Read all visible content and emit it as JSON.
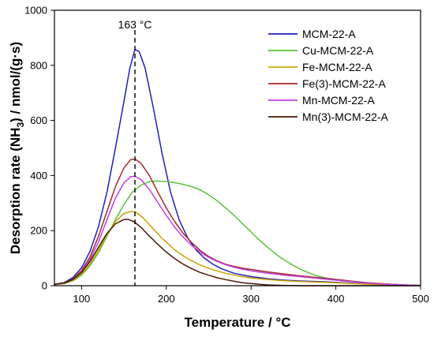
{
  "chart_data": {
    "type": "line",
    "xlabel": "Temperature / °C",
    "ylabel_parts": [
      "Desorption rate (NH",
      "3",
      ") / nmol/(g·s)"
    ],
    "xlim": [
      68,
      500
    ],
    "ylim": [
      0,
      1000
    ],
    "xticks": [
      100,
      200,
      300,
      400,
      500
    ],
    "yticks": [
      0,
      200,
      400,
      600,
      800,
      1000
    ],
    "grid": false,
    "legend_position": "top-right",
    "annotation": {
      "text": "163 °C",
      "x": 163
    },
    "series": [
      {
        "name": "MCM-22-A",
        "color": "#1f1fbf",
        "points": [
          [
            68,
            5
          ],
          [
            80,
            12
          ],
          [
            90,
            30
          ],
          [
            100,
            65
          ],
          [
            110,
            125
          ],
          [
            120,
            215
          ],
          [
            130,
            340
          ],
          [
            140,
            500
          ],
          [
            150,
            670
          ],
          [
            157,
            790
          ],
          [
            163,
            858
          ],
          [
            168,
            850
          ],
          [
            175,
            790
          ],
          [
            185,
            640
          ],
          [
            195,
            480
          ],
          [
            205,
            340
          ],
          [
            215,
            240
          ],
          [
            225,
            175
          ],
          [
            235,
            130
          ],
          [
            245,
            100
          ],
          [
            255,
            78
          ],
          [
            265,
            62
          ],
          [
            280,
            45
          ],
          [
            300,
            33
          ],
          [
            320,
            25
          ],
          [
            340,
            20
          ],
          [
            360,
            17
          ],
          [
            380,
            15
          ],
          [
            400,
            12
          ],
          [
            420,
            9
          ],
          [
            440,
            6
          ],
          [
            460,
            4
          ],
          [
            480,
            2
          ],
          [
            500,
            1
          ]
        ]
      },
      {
        "name": "Cu-MCM-22-A",
        "color": "#5cc23a",
        "points": [
          [
            68,
            4
          ],
          [
            80,
            8
          ],
          [
            90,
            18
          ],
          [
            100,
            38
          ],
          [
            110,
            72
          ],
          [
            120,
            120
          ],
          [
            130,
            180
          ],
          [
            140,
            240
          ],
          [
            150,
            295
          ],
          [
            160,
            340
          ],
          [
            170,
            365
          ],
          [
            180,
            378
          ],
          [
            190,
            380
          ],
          [
            200,
            378
          ],
          [
            210,
            374
          ],
          [
            220,
            368
          ],
          [
            230,
            360
          ],
          [
            240,
            348
          ],
          [
            250,
            330
          ],
          [
            260,
            308
          ],
          [
            270,
            282
          ],
          [
            280,
            255
          ],
          [
            290,
            225
          ],
          [
            300,
            195
          ],
          [
            310,
            165
          ],
          [
            320,
            138
          ],
          [
            330,
            113
          ],
          [
            340,
            92
          ],
          [
            350,
            73
          ],
          [
            360,
            57
          ],
          [
            370,
            44
          ],
          [
            380,
            34
          ],
          [
            390,
            27
          ],
          [
            400,
            22
          ],
          [
            420,
            15
          ],
          [
            440,
            10
          ],
          [
            460,
            6
          ],
          [
            480,
            3
          ],
          [
            500,
            1
          ]
        ]
      },
      {
        "name": "Fe-MCM-22-A",
        "color": "#c8a400",
        "points": [
          [
            68,
            4
          ],
          [
            80,
            9
          ],
          [
            90,
            20
          ],
          [
            100,
            42
          ],
          [
            110,
            78
          ],
          [
            120,
            130
          ],
          [
            130,
            185
          ],
          [
            140,
            233
          ],
          [
            150,
            262
          ],
          [
            158,
            270
          ],
          [
            165,
            265
          ],
          [
            172,
            248
          ],
          [
            182,
            215
          ],
          [
            195,
            172
          ],
          [
            210,
            130
          ],
          [
            225,
            98
          ],
          [
            240,
            75
          ],
          [
            255,
            58
          ],
          [
            270,
            45
          ],
          [
            285,
            35
          ],
          [
            300,
            28
          ],
          [
            320,
            22
          ],
          [
            340,
            18
          ],
          [
            360,
            15
          ],
          [
            380,
            13
          ],
          [
            400,
            11
          ],
          [
            420,
            8
          ],
          [
            440,
            5
          ],
          [
            460,
            3
          ],
          [
            480,
            2
          ],
          [
            500,
            1
          ]
        ]
      },
      {
        "name": "Fe(3)-MCM-22-A",
        "color": "#a52a2a",
        "points": [
          [
            68,
            5
          ],
          [
            80,
            11
          ],
          [
            90,
            25
          ],
          [
            100,
            55
          ],
          [
            110,
            105
          ],
          [
            120,
            180
          ],
          [
            130,
            270
          ],
          [
            140,
            360
          ],
          [
            150,
            428
          ],
          [
            158,
            458
          ],
          [
            163,
            460
          ],
          [
            170,
            445
          ],
          [
            180,
            400
          ],
          [
            190,
            340
          ],
          [
            200,
            282
          ],
          [
            210,
            232
          ],
          [
            220,
            190
          ],
          [
            230,
            156
          ],
          [
            240,
            128
          ],
          [
            250,
            106
          ],
          [
            260,
            90
          ],
          [
            270,
            78
          ],
          [
            280,
            70
          ],
          [
            290,
            64
          ],
          [
            300,
            59
          ],
          [
            320,
            50
          ],
          [
            340,
            42
          ],
          [
            360,
            35
          ],
          [
            380,
            29
          ],
          [
            400,
            23
          ],
          [
            420,
            16
          ],
          [
            440,
            10
          ],
          [
            460,
            6
          ],
          [
            480,
            3
          ],
          [
            500,
            1
          ]
        ]
      },
      {
        "name": "Mn-MCM-22-A",
        "color": "#c03fe0",
        "points": [
          [
            68,
            5
          ],
          [
            80,
            10
          ],
          [
            90,
            23
          ],
          [
            100,
            50
          ],
          [
            110,
            95
          ],
          [
            120,
            160
          ],
          [
            130,
            240
          ],
          [
            140,
            318
          ],
          [
            150,
            373
          ],
          [
            158,
            396
          ],
          [
            163,
            397
          ],
          [
            170,
            385
          ],
          [
            180,
            350
          ],
          [
            190,
            302
          ],
          [
            200,
            255
          ],
          [
            210,
            212
          ],
          [
            220,
            176
          ],
          [
            230,
            146
          ],
          [
            240,
            122
          ],
          [
            250,
            103
          ],
          [
            260,
            88
          ],
          [
            270,
            76
          ],
          [
            280,
            67
          ],
          [
            290,
            60
          ],
          [
            300,
            54
          ],
          [
            320,
            45
          ],
          [
            340,
            38
          ],
          [
            360,
            32
          ],
          [
            380,
            26
          ],
          [
            400,
            20
          ],
          [
            420,
            14
          ],
          [
            440,
            9
          ],
          [
            460,
            5
          ],
          [
            480,
            3
          ],
          [
            500,
            1
          ]
        ]
      },
      {
        "name": "Mn(3)-MCM-22-A",
        "color": "#4a1a0a",
        "points": [
          [
            68,
            5
          ],
          [
            80,
            10
          ],
          [
            90,
            23
          ],
          [
            100,
            48
          ],
          [
            110,
            88
          ],
          [
            120,
            140
          ],
          [
            130,
            190
          ],
          [
            140,
            225
          ],
          [
            150,
            240
          ],
          [
            155,
            241
          ],
          [
            162,
            232
          ],
          [
            170,
            212
          ],
          [
            180,
            180
          ],
          [
            190,
            150
          ],
          [
            200,
            122
          ],
          [
            210,
            98
          ],
          [
            220,
            78
          ],
          [
            230,
            62
          ],
          [
            240,
            48
          ],
          [
            250,
            38
          ],
          [
            260,
            29
          ],
          [
            270,
            22
          ],
          [
            280,
            16
          ],
          [
            290,
            11
          ],
          [
            300,
            8
          ],
          [
            310,
            5
          ],
          [
            320,
            3
          ],
          [
            340,
            1
          ],
          [
            360,
            0
          ],
          [
            500,
            0
          ]
        ]
      }
    ]
  }
}
